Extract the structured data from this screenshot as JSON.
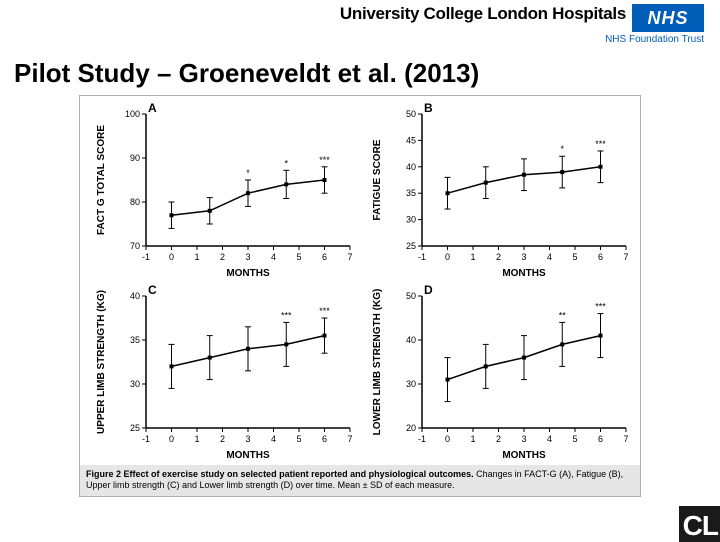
{
  "header": {
    "hospital": "University College London Hospitals",
    "nhs": "NHS",
    "trust": "NHS Foundation Trust"
  },
  "title": "Pilot Study – Groeneveldt et al. (2013)",
  "style": {
    "line_color": "#000000",
    "marker_size": 4,
    "error_cap": 3,
    "tick_font": 9,
    "label_font": 10,
    "panel_font": 12,
    "sig_font": 9
  },
  "panels": {
    "A": {
      "letter": "A",
      "ylabel": "FACT G TOTAL SCORE",
      "xlabel": "MONTHS",
      "ylim": [
        70,
        100
      ],
      "ytick_step": 10,
      "xlim": [
        -1,
        7
      ],
      "xtick_step": 1,
      "x": [
        0,
        1.5,
        3,
        4.5,
        6
      ],
      "y": [
        77,
        78,
        82,
        84,
        85
      ],
      "err": [
        3,
        3,
        3,
        3.2,
        3
      ],
      "sig": [
        {
          "x": 3,
          "text": "*"
        },
        {
          "x": 4.5,
          "text": "*"
        },
        {
          "x": 6,
          "text": "***"
        }
      ]
    },
    "B": {
      "letter": "B",
      "ylabel": "FATIGUE SCORE",
      "xlabel": "MONTHS",
      "ylim": [
        25,
        50
      ],
      "ytick_step": 5,
      "xlim": [
        -1,
        7
      ],
      "xtick_step": 1,
      "x": [
        0,
        1.5,
        3,
        4.5,
        6
      ],
      "y": [
        35,
        37,
        38.5,
        39,
        40
      ],
      "err": [
        3,
        3,
        3,
        3,
        3
      ],
      "sig": [
        {
          "x": 4.5,
          "text": "*"
        },
        {
          "x": 6,
          "text": "***"
        }
      ]
    },
    "C": {
      "letter": "C",
      "ylabel": "UPPER LIMB STRENGTH (KG)",
      "xlabel": "MONTHS",
      "ylim": [
        25,
        40
      ],
      "ytick_step": 5,
      "xlim": [
        -1,
        7
      ],
      "xtick_step": 1,
      "x": [
        0,
        1.5,
        3,
        4.5,
        6
      ],
      "y": [
        32,
        33,
        34,
        34.5,
        35.5
      ],
      "err": [
        2.5,
        2.5,
        2.5,
        2.5,
        2
      ],
      "sig": [
        {
          "x": 4.5,
          "text": "***"
        },
        {
          "x": 6,
          "text": "***"
        }
      ]
    },
    "D": {
      "letter": "D",
      "ylabel": "LOWER LIMB STRENGTH (KG)",
      "xlabel": "MONTHS",
      "ylim": [
        20,
        50
      ],
      "ytick_step": 10,
      "xlim": [
        -1,
        7
      ],
      "xtick_step": 1,
      "x": [
        0,
        1.5,
        3,
        4.5,
        6
      ],
      "y": [
        31,
        34,
        36,
        39,
        41
      ],
      "err": [
        5,
        5,
        5,
        5,
        5
      ],
      "sig": [
        {
          "x": 4.5,
          "text": "**"
        },
        {
          "x": 6,
          "text": "***"
        }
      ]
    }
  },
  "caption_bold": "Figure 2 Effect of exercise study on selected patient reported and physiological outcomes.",
  "caption_rest": " Changes in FACT-G (A), Fatigue (B), Upper limb strength (C) and Lower limb strength (D) over time. Mean ± SD of each measure.",
  "ucl": "CL"
}
